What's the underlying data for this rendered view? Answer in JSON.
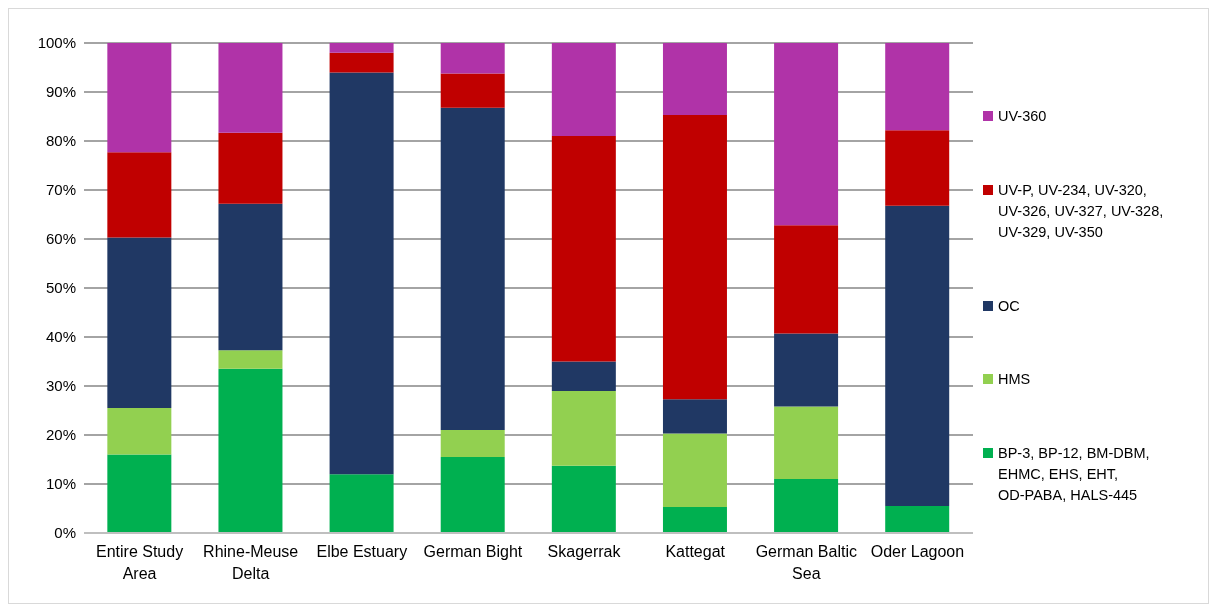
{
  "chart_data": {
    "type": "bar",
    "stacked": true,
    "categories": [
      "Entire Study Area",
      "Rhine-Meuse Delta",
      "Elbe Estuary",
      "German Bight",
      "Skagerrak",
      "Kattegat",
      "German Baltic Sea",
      "Oder Lagoon"
    ],
    "series": [
      {
        "name": "BP-3, BP-12, BM-DBM, EHMC, EHS, EHT, OD-PABA, HALS-445",
        "color": "#00b050",
        "values": [
          16,
          33.5,
          12,
          15.5,
          13.7,
          5.3,
          11,
          5.5
        ]
      },
      {
        "name": "HMS",
        "color": "#92d050",
        "values": [
          9.5,
          3.8,
          0,
          5.5,
          15.3,
          15,
          14.8,
          0
        ]
      },
      {
        "name": "OC",
        "color": "#203864",
        "values": [
          34.8,
          29.9,
          82,
          65.8,
          6,
          7,
          14.9,
          61.3
        ]
      },
      {
        "name": "UV-P, UV-234, UV-320, UV-326, UV-327, UV-328, UV-329, UV-350",
        "color": "#c00000",
        "values": [
          17.4,
          14.5,
          4,
          7,
          46,
          58,
          22.1,
          15.4
        ]
      },
      {
        "name": "UV-360",
        "color": "#b033a8",
        "values": [
          22.3,
          18.3,
          2,
          6.2,
          19,
          14.7,
          37.2,
          17.8
        ]
      }
    ],
    "ylim": [
      0,
      100
    ],
    "yticks": [
      {
        "value": 0,
        "label": "0%"
      },
      {
        "value": 10,
        "label": "10%"
      },
      {
        "value": 20,
        "label": "20%"
      },
      {
        "value": 30,
        "label": "30%"
      },
      {
        "value": 40,
        "label": "40%"
      },
      {
        "value": 50,
        "label": "50%"
      },
      {
        "value": 60,
        "label": "60%"
      },
      {
        "value": 70,
        "label": "70%"
      },
      {
        "value": 80,
        "label": "80%"
      },
      {
        "value": 90,
        "label": "90%"
      },
      {
        "value": 100,
        "label": "100%"
      }
    ],
    "grid": "y",
    "legend": "right"
  }
}
